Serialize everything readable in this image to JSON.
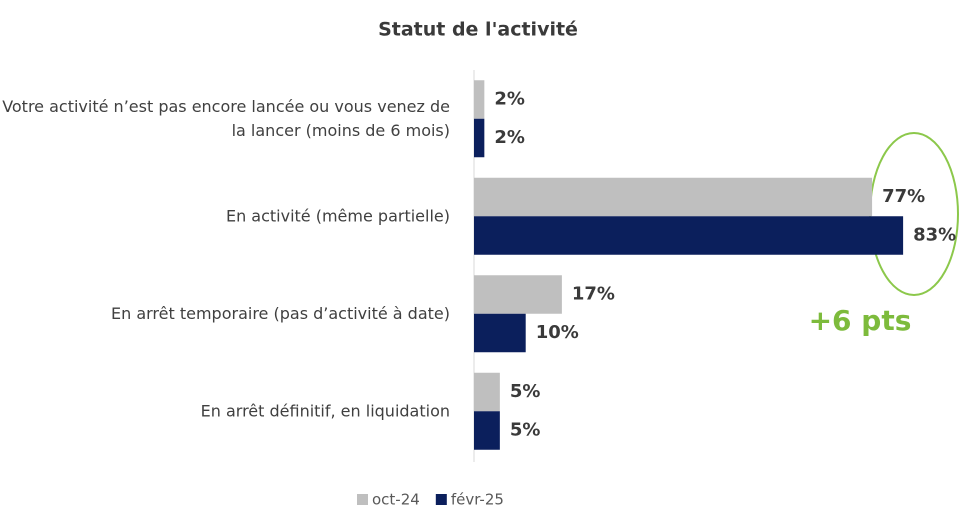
{
  "chart_data": {
    "type": "barh",
    "title": "Statut de l'activité",
    "annotation": "+6 pts",
    "categories": [
      "Votre activité n’est pas encore lancée ou vous venez de la lancer (moins de 6 mois)",
      "En activité (même partielle)",
      "En arrêt temporaire (pas d’activité à date)",
      "En arrêt définitif, en liquidation"
    ],
    "xlim": [
      0,
      100
    ],
    "legend": "bottom",
    "series": [
      {
        "name": "oct-24",
        "color": "#bfbfbf",
        "values": [
          2,
          77,
          17,
          5
        ],
        "value_labels": [
          "2%",
          "77%",
          "17%",
          "5%"
        ]
      },
      {
        "name": "févr-25",
        "color": "#0b1f5c",
        "values": [
          2,
          83,
          10,
          5
        ],
        "value_labels": [
          "2%",
          "83%",
          "10%",
          "5%"
        ]
      }
    ]
  }
}
